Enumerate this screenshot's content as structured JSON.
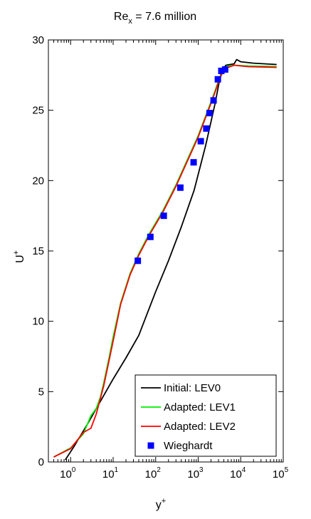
{
  "chart_data": {
    "type": "line",
    "title": {
      "base": "Re",
      "sub": "x",
      "rest": " = 7.6 million"
    },
    "xlabel": {
      "base": "y",
      "sup": "+"
    },
    "ylabel": {
      "base": "U",
      "sup": "+"
    },
    "xscale": "log",
    "xlim": [
      0.3,
      100000
    ],
    "ylim": [
      0,
      30
    ],
    "xticks": [
      1,
      10,
      100,
      1000,
      10000,
      100000
    ],
    "xtick_labels": [
      {
        "base": "10",
        "exp": "0"
      },
      {
        "base": "10",
        "exp": "1"
      },
      {
        "base": "10",
        "exp": "2"
      },
      {
        "base": "10",
        "exp": "3"
      },
      {
        "base": "10",
        "exp": "4"
      },
      {
        "base": "10",
        "exp": "5"
      }
    ],
    "yticks": [
      0,
      5,
      10,
      15,
      20,
      25,
      30
    ],
    "ytick_labels": [
      "0",
      "5",
      "10",
      "15",
      "20",
      "25",
      "30"
    ],
    "grid": false,
    "legend_position": "bottom-right",
    "series": [
      {
        "name": "Initial: LEV0",
        "kind": "line",
        "color": "#000000",
        "x": [
          0.75,
          1.2,
          2.5,
          5,
          10,
          20,
          40,
          100,
          200,
          400,
          800,
          1500,
          2500,
          3500,
          4500,
          7000,
          8000,
          10000,
          20000,
          70000
        ],
        "y": [
          0.15,
          1.1,
          2.7,
          4.3,
          5.9,
          7.4,
          9.0,
          12.1,
          14.3,
          16.7,
          19.3,
          22.5,
          25.5,
          27.8,
          28.2,
          28.3,
          28.6,
          28.45,
          28.35,
          28.25
        ]
      },
      {
        "name": "Adapted: LEV1",
        "kind": "line",
        "color": "#00ee00",
        "x": [
          0.4,
          1,
          2,
          3,
          4,
          5,
          6,
          8,
          10,
          15,
          25,
          40,
          70,
          150,
          300,
          600,
          1000,
          1500,
          2000,
          2500,
          3000,
          3500,
          4500,
          7000,
          15000,
          70000
        ],
        "y": [
          0.35,
          1.0,
          2.0,
          3.3,
          3.8,
          4.6,
          5.6,
          7.4,
          8.9,
          11.3,
          13.4,
          14.8,
          16.2,
          17.9,
          19.7,
          21.7,
          23.2,
          24.6,
          25.6,
          26.4,
          27.1,
          27.6,
          28.1,
          28.2,
          28.15,
          28.1
        ]
      },
      {
        "name": "Adapted: LEV2",
        "kind": "line",
        "color": "#ff0000",
        "x": [
          0.4,
          1,
          2,
          3,
          4,
          5,
          6,
          8,
          10,
          15,
          25,
          40,
          70,
          150,
          300,
          600,
          1000,
          1500,
          2000,
          2500,
          3000,
          3500,
          4500,
          7000,
          15000,
          70000
        ],
        "y": [
          0.35,
          0.95,
          2.1,
          2.4,
          3.4,
          4.5,
          5.4,
          7.2,
          8.6,
          11.2,
          13.3,
          14.7,
          16.1,
          17.8,
          19.6,
          21.6,
          23.1,
          24.5,
          25.5,
          26.3,
          27.0,
          27.5,
          28.0,
          28.2,
          28.1,
          28.05
        ]
      },
      {
        "name": "Wieghardt",
        "kind": "scatter",
        "color": "#0000ff",
        "x": [
          38,
          75,
          155,
          380,
          780,
          1150,
          1550,
          1850,
          2300,
          2900,
          3500,
          4300
        ],
        "y": [
          14.3,
          16.0,
          17.5,
          19.5,
          21.3,
          22.8,
          23.7,
          24.8,
          25.7,
          27.2,
          27.8,
          27.9
        ]
      }
    ]
  }
}
